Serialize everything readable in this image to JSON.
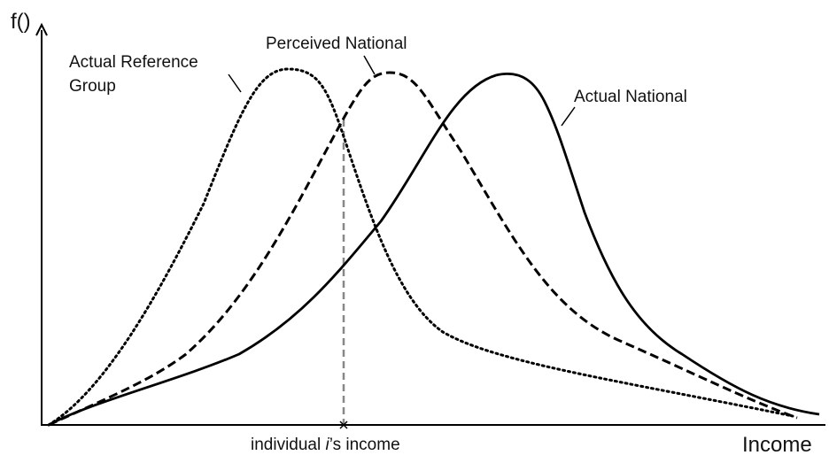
{
  "axes": {
    "y_label": "f()",
    "x_label": "Income"
  },
  "curves": {
    "reference": {
      "label_lines": [
        "Actual Reference",
        "Group"
      ]
    },
    "perceived": {
      "label": "Perceived National"
    },
    "actual": {
      "label": "Actual National"
    }
  },
  "marker": {
    "label_parts": [
      "individual ",
      "i",
      "’s income"
    ]
  }
}
